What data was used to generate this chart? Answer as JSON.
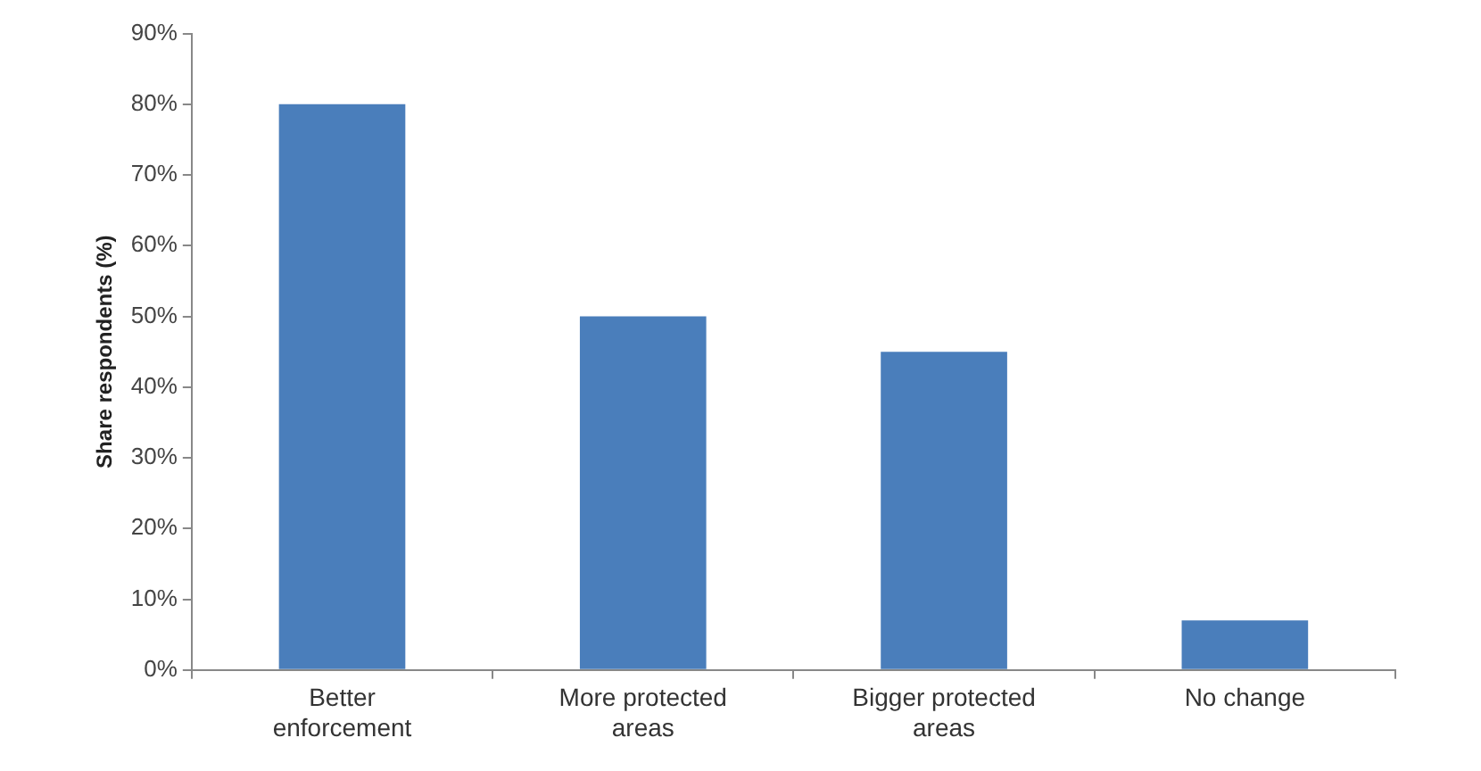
{
  "chart_data": {
    "type": "bar",
    "ylabel": "Share respondents (%)",
    "categories": [
      "Better enforcement",
      "More protected areas",
      "Bigger protected areas",
      "No change"
    ],
    "values": [
      80,
      50,
      45,
      7
    ],
    "color": "#4a7ebb",
    "ylim": [
      0,
      90
    ],
    "yticks": [
      {
        "value": 0,
        "label": "0%"
      },
      {
        "value": 10,
        "label": "10%"
      },
      {
        "value": 20,
        "label": "20%"
      },
      {
        "value": 30,
        "label": "30%"
      },
      {
        "value": 40,
        "label": "40%"
      },
      {
        "value": 50,
        "label": "50%"
      },
      {
        "value": 60,
        "label": "60%"
      },
      {
        "value": 70,
        "label": "70%"
      },
      {
        "value": 80,
        "label": "80%"
      },
      {
        "value": 90,
        "label": "90%"
      }
    ],
    "grid": false,
    "legend": false
  }
}
